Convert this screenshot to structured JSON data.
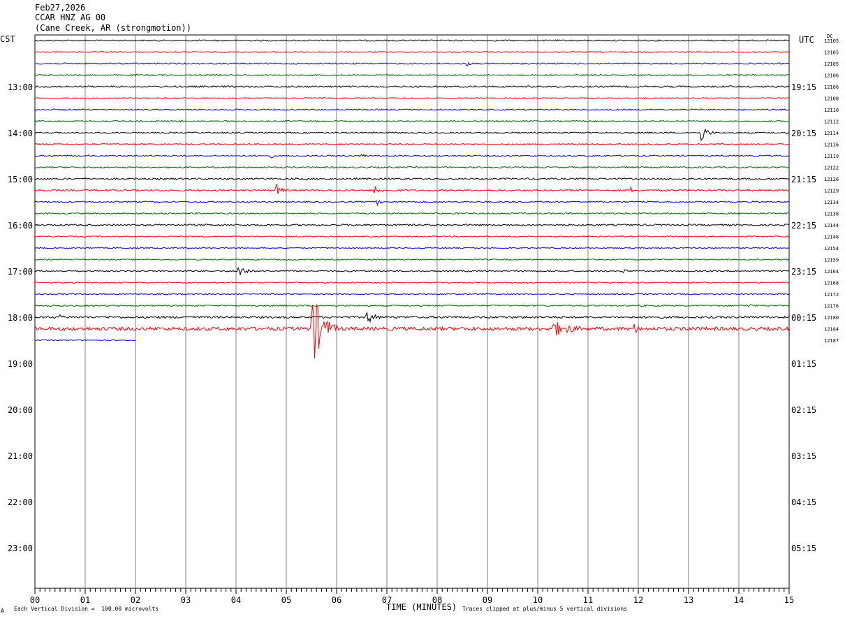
{
  "header": {
    "date": "Feb27,2026",
    "station": "CCAR HNZ AG 00",
    "location": "(Cane Creek, AR (strongmotion))"
  },
  "left_tz": "CST",
  "right_tz": "UTC",
  "dc_label": "DC",
  "footer": {
    "scale_note": "Each Vertical Division =  100.00 microvolts",
    "clip_note": "Traces clipped at plus/minus 5 vertical divisions",
    "corner_mark": "A"
  },
  "colors": {
    "trace_cycle": [
      "#000000",
      "#ff0000",
      "#0000ff",
      "#006400"
    ],
    "grid": "#808080"
  },
  "chart_data": {
    "type": "line",
    "title": "CCAR HNZ AG 00",
    "xlabel": "TIME (MINUTES)",
    "xlim": [
      0,
      15
    ],
    "x_ticks": [
      "00",
      "01",
      "02",
      "03",
      "04",
      "05",
      "06",
      "07",
      "08",
      "09",
      "10",
      "11",
      "12",
      "13",
      "14",
      "15"
    ],
    "rows_per_hour": 4,
    "hour_labels_left": [
      "13:00",
      "14:00",
      "15:00",
      "16:00",
      "17:00",
      "18:00",
      "19:00",
      "20:00",
      "21:00",
      "22:00",
      "23:00"
    ],
    "hour_labels_right": [
      "19:15",
      "20:15",
      "21:15",
      "22:15",
      "23:15",
      "00:15",
      "01:15",
      "02:15",
      "03:15",
      "04:15",
      "05:15"
    ],
    "dc_offsets": [
      "12105",
      "12105",
      "12105",
      "12106",
      "12106",
      "12108",
      "12110",
      "12112",
      "12114",
      "12116",
      "12119",
      "12122",
      "12126",
      "12129",
      "12134",
      "12138",
      "12144",
      "12148",
      "12154",
      "12159",
      "12164",
      "12168",
      "12172",
      "12176",
      "12180",
      "12184",
      "12187"
    ],
    "series": [
      {
        "noise": 1.0,
        "events": []
      },
      {
        "noise": 0.8,
        "events": []
      },
      {
        "noise": 1.0,
        "events": [
          {
            "t": 8.6,
            "amp": 4,
            "dur": 0.2
          }
        ]
      },
      {
        "noise": 1.0,
        "events": [
          {
            "t": 2.0,
            "amp": 2,
            "dur": 0.2
          }
        ]
      },
      {
        "noise": 1.2,
        "events": []
      },
      {
        "noise": 0.8,
        "events": []
      },
      {
        "noise": 1.0,
        "events": []
      },
      {
        "noise": 1.0,
        "events": []
      },
      {
        "noise": 1.0,
        "events": [
          {
            "t": 13.25,
            "amp": 14,
            "dur": 0.35
          }
        ]
      },
      {
        "noise": 1.0,
        "events": []
      },
      {
        "noise": 1.0,
        "events": [
          {
            "t": 4.7,
            "amp": 3,
            "dur": 0.3
          },
          {
            "t": 6.5,
            "amp": 4,
            "dur": 0.3
          }
        ]
      },
      {
        "noise": 1.0,
        "events": []
      },
      {
        "noise": 1.2,
        "events": []
      },
      {
        "noise": 1.2,
        "events": [
          {
            "t": 4.8,
            "amp": 10,
            "dur": 0.35
          },
          {
            "t": 6.75,
            "amp": 9,
            "dur": 0.35
          },
          {
            "t": 11.85,
            "amp": 5,
            "dur": 0.15
          }
        ]
      },
      {
        "noise": 1.0,
        "events": [
          {
            "t": 6.8,
            "amp": 5,
            "dur": 0.25
          }
        ]
      },
      {
        "noise": 1.0,
        "events": []
      },
      {
        "noise": 1.2,
        "events": []
      },
      {
        "noise": 0.8,
        "events": []
      },
      {
        "noise": 0.8,
        "events": []
      },
      {
        "noise": 0.8,
        "events": []
      },
      {
        "noise": 1.0,
        "events": [
          {
            "t": 4.05,
            "amp": 12,
            "dur": 0.4
          },
          {
            "t": 11.7,
            "amp": 4,
            "dur": 0.3
          }
        ]
      },
      {
        "noise": 0.8,
        "events": []
      },
      {
        "noise": 0.8,
        "events": []
      },
      {
        "noise": 1.0,
        "events": [
          {
            "t": 14.2,
            "amp": 3,
            "dur": 0.4
          }
        ]
      },
      {
        "noise": 1.5,
        "events": [
          {
            "t": 0.5,
            "amp": 4,
            "dur": 0.4
          },
          {
            "t": 6.6,
            "amp": 10,
            "dur": 0.5
          }
        ]
      },
      {
        "noise": 2.5,
        "events": [
          {
            "t": 5.52,
            "amp": 55,
            "dur": 0.6
          },
          {
            "t": 10.3,
            "amp": 12,
            "dur": 1.3
          },
          {
            "t": 11.9,
            "amp": 8,
            "dur": 0.5
          },
          {
            "t": 13.0,
            "amp": 6,
            "dur": 0.4
          }
        ]
      },
      {
        "noise": 0.8,
        "end_minute": 2.0,
        "events": []
      }
    ]
  }
}
